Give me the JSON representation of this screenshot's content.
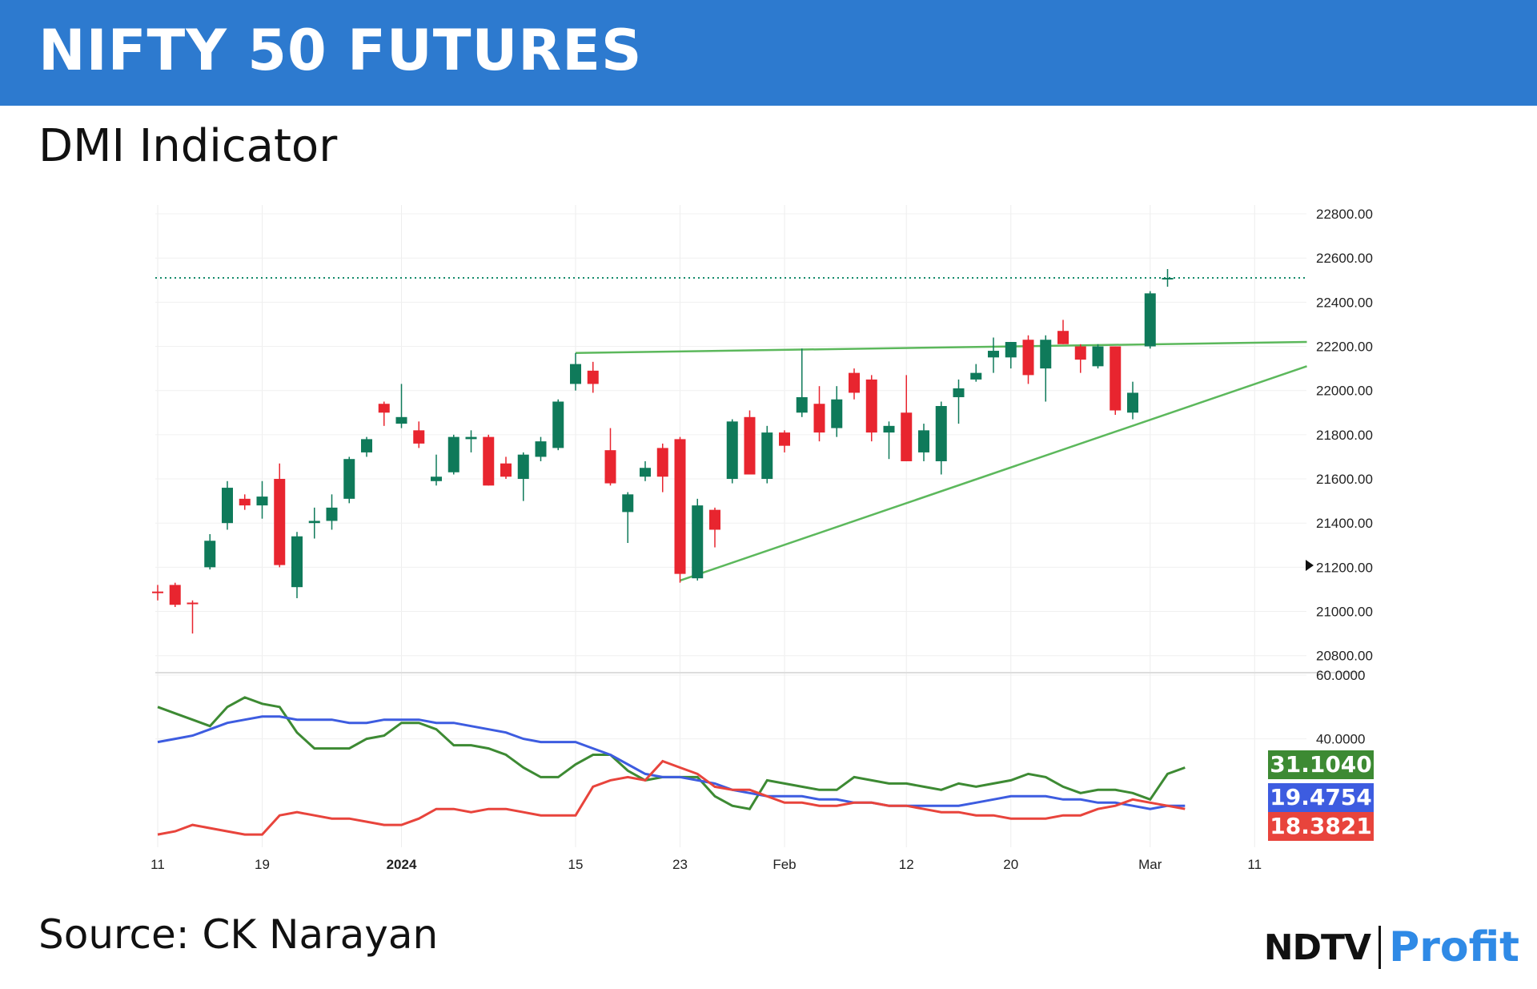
{
  "header": {
    "title": "NIFTY 50 FUTURES"
  },
  "subtitle": "DMI Indicator",
  "source": "Source: CK Narayan",
  "brand": {
    "part1": "NDTV",
    "part2": "Profit"
  },
  "colors": {
    "banner": "#2d7acf",
    "up": "#0f7a5a",
    "down": "#e8252f",
    "trend": "#5cb85c",
    "adx": "#3d5ce0",
    "plus_di": "#3d8a33",
    "minus_di": "#e8443c"
  },
  "chart_data": {
    "type": "candlestick",
    "x_ticks": [
      {
        "label": "11",
        "i": 0
      },
      {
        "label": "19",
        "i": 6
      },
      {
        "label": "2024",
        "i": 14,
        "bold": true
      },
      {
        "label": "15",
        "i": 24
      },
      {
        "label": "23",
        "i": 30
      },
      {
        "label": "Feb",
        "i": 36
      },
      {
        "label": "12",
        "i": 43
      },
      {
        "label": "20",
        "i": 49
      },
      {
        "label": "Mar",
        "i": 57
      },
      {
        "label": "11",
        "i": 63
      }
    ],
    "price_axis": {
      "ticks": [
        "22800.00",
        "22600.00",
        "22400.00",
        "22200.00",
        "22000.00",
        "21800.00",
        "21600.00",
        "21400.00",
        "21200.00",
        "21000.00",
        "20800.00"
      ],
      "range": [
        20730,
        22840
      ]
    },
    "candles": [
      {
        "o": 21090,
        "h": 21120,
        "l": 21050,
        "c": 21085
      },
      {
        "o": 21120,
        "h": 21130,
        "l": 21020,
        "c": 21030
      },
      {
        "o": 21040,
        "h": 21050,
        "l": 20900,
        "c": 21035
      },
      {
        "o": 21200,
        "h": 21350,
        "l": 21190,
        "c": 21320
      },
      {
        "o": 21400,
        "h": 21590,
        "l": 21370,
        "c": 21560
      },
      {
        "o": 21510,
        "h": 21530,
        "l": 21460,
        "c": 21480
      },
      {
        "o": 21480,
        "h": 21590,
        "l": 21420,
        "c": 21520
      },
      {
        "o": 21600,
        "h": 21670,
        "l": 21200,
        "c": 21210
      },
      {
        "o": 21110,
        "h": 21360,
        "l": 21060,
        "c": 21340
      },
      {
        "o": 21400,
        "h": 21470,
        "l": 21330,
        "c": 21410
      },
      {
        "o": 21410,
        "h": 21530,
        "l": 21370,
        "c": 21470
      },
      {
        "o": 21510,
        "h": 21700,
        "l": 21490,
        "c": 21690
      },
      {
        "o": 21720,
        "h": 21790,
        "l": 21700,
        "c": 21780
      },
      {
        "o": 21940,
        "h": 21950,
        "l": 21840,
        "c": 21900
      },
      {
        "o": 21850,
        "h": 22030,
        "l": 21830,
        "c": 21880
      },
      {
        "o": 21820,
        "h": 21860,
        "l": 21740,
        "c": 21760
      },
      {
        "o": 21590,
        "h": 21710,
        "l": 21570,
        "c": 21610
      },
      {
        "o": 21630,
        "h": 21800,
        "l": 21620,
        "c": 21790
      },
      {
        "o": 21780,
        "h": 21820,
        "l": 21720,
        "c": 21790
      },
      {
        "o": 21790,
        "h": 21800,
        "l": 21570,
        "c": 21570
      },
      {
        "o": 21670,
        "h": 21700,
        "l": 21600,
        "c": 21610
      },
      {
        "o": 21600,
        "h": 21720,
        "l": 21500,
        "c": 21710
      },
      {
        "o": 21700,
        "h": 21790,
        "l": 21680,
        "c": 21770
      },
      {
        "o": 21740,
        "h": 21960,
        "l": 21730,
        "c": 21950
      },
      {
        "o": 22030,
        "h": 22170,
        "l": 22000,
        "c": 22120
      },
      {
        "o": 22090,
        "h": 22130,
        "l": 21990,
        "c": 22030
      },
      {
        "o": 21730,
        "h": 21830,
        "l": 21570,
        "c": 21580
      },
      {
        "o": 21450,
        "h": 21540,
        "l": 21310,
        "c": 21530
      },
      {
        "o": 21610,
        "h": 21680,
        "l": 21590,
        "c": 21650
      },
      {
        "o": 21740,
        "h": 21760,
        "l": 21540,
        "c": 21610
      },
      {
        "o": 21780,
        "h": 21790,
        "l": 21130,
        "c": 21170
      },
      {
        "o": 21150,
        "h": 21510,
        "l": 21140,
        "c": 21480
      },
      {
        "o": 21460,
        "h": 21470,
        "l": 21290,
        "c": 21370
      },
      {
        "o": 21600,
        "h": 21870,
        "l": 21580,
        "c": 21860
      },
      {
        "o": 21880,
        "h": 21910,
        "l": 21630,
        "c": 21620
      },
      {
        "o": 21600,
        "h": 21840,
        "l": 21580,
        "c": 21810
      },
      {
        "o": 21810,
        "h": 21820,
        "l": 21720,
        "c": 21750
      },
      {
        "o": 21900,
        "h": 22190,
        "l": 21880,
        "c": 21970
      },
      {
        "o": 21940,
        "h": 22020,
        "l": 21770,
        "c": 21810
      },
      {
        "o": 21830,
        "h": 22020,
        "l": 21790,
        "c": 21960
      },
      {
        "o": 22080,
        "h": 22100,
        "l": 21960,
        "c": 21990
      },
      {
        "o": 22050,
        "h": 22070,
        "l": 21770,
        "c": 21810
      },
      {
        "o": 21810,
        "h": 21860,
        "l": 21690,
        "c": 21840
      },
      {
        "o": 21900,
        "h": 22070,
        "l": 21680,
        "c": 21680
      },
      {
        "o": 21720,
        "h": 21850,
        "l": 21680,
        "c": 21820
      },
      {
        "o": 21680,
        "h": 21950,
        "l": 21620,
        "c": 21930
      },
      {
        "o": 21970,
        "h": 22050,
        "l": 21850,
        "c": 22010
      },
      {
        "o": 22050,
        "h": 22120,
        "l": 22040,
        "c": 22080
      },
      {
        "o": 22150,
        "h": 22240,
        "l": 22080,
        "c": 22180
      },
      {
        "o": 22150,
        "h": 22220,
        "l": 22100,
        "c": 22220
      },
      {
        "o": 22230,
        "h": 22250,
        "l": 22030,
        "c": 22070
      },
      {
        "o": 22100,
        "h": 22250,
        "l": 21950,
        "c": 22230
      },
      {
        "o": 22270,
        "h": 22320,
        "l": 22210,
        "c": 22210
      },
      {
        "o": 22200,
        "h": 22210,
        "l": 22080,
        "c": 22140
      },
      {
        "o": 22110,
        "h": 22210,
        "l": 22100,
        "c": 22200
      },
      {
        "o": 22200,
        "h": 22200,
        "l": 21890,
        "c": 21910
      },
      {
        "o": 21900,
        "h": 22040,
        "l": 21870,
        "c": 21990
      },
      {
        "o": 22200,
        "h": 22450,
        "l": 22190,
        "c": 22440
      },
      {
        "o": 22510,
        "h": 22550,
        "l": 22470,
        "c": 22510
      }
    ],
    "last_price_line": 22510,
    "trendlines": [
      {
        "i1": 24,
        "v1": 22170,
        "i2": 66,
        "v2": 22220
      },
      {
        "i1": 30,
        "v1": 21140,
        "i2": 66,
        "v2": 22110
      }
    ],
    "indicator": {
      "name": "DMI",
      "ticks": [
        "60.0000",
        "40.0000"
      ],
      "range": [
        6,
        60
      ],
      "series": [
        {
          "label": "31.1040",
          "color": "#3d8a33",
          "values": [
            50,
            48,
            46,
            44,
            50,
            53,
            51,
            50,
            42,
            37,
            37,
            37,
            40,
            41,
            45,
            45,
            43,
            38,
            38,
            37,
            35,
            31,
            28,
            28,
            32,
            35,
            35,
            30,
            27,
            28,
            28,
            28,
            22,
            19,
            18,
            27,
            26,
            25,
            24,
            24,
            28,
            27,
            26,
            26,
            25,
            24,
            26,
            25,
            26,
            27,
            29,
            28,
            25,
            23,
            24,
            24,
            23,
            21,
            29,
            31
          ]
        },
        {
          "label": "19.4754",
          "color": "#3d5ce0",
          "values": [
            39,
            40,
            41,
            43,
            45,
            46,
            47,
            47,
            46,
            46,
            46,
            45,
            45,
            46,
            46,
            46,
            45,
            45,
            44,
            43,
            42,
            40,
            39,
            39,
            39,
            37,
            35,
            32,
            29,
            28,
            28,
            27,
            26,
            24,
            23,
            22,
            22,
            22,
            21,
            21,
            20,
            20,
            19,
            19,
            19,
            19,
            19,
            20,
            21,
            22,
            22,
            22,
            21,
            21,
            20,
            20,
            19,
            18,
            19,
            19
          ]
        },
        {
          "label": "18.3821",
          "color": "#e8443c",
          "values": [
            10,
            11,
            13,
            12,
            11,
            10,
            10,
            16,
            17,
            16,
            15,
            15,
            14,
            13,
            13,
            15,
            18,
            18,
            17,
            18,
            18,
            17,
            16,
            16,
            16,
            25,
            27,
            28,
            27,
            33,
            31,
            29,
            25,
            24,
            24,
            22,
            20,
            20,
            19,
            19,
            20,
            20,
            19,
            19,
            18,
            17,
            17,
            16,
            16,
            15,
            15,
            15,
            16,
            16,
            18,
            19,
            21,
            20,
            19,
            18
          ]
        }
      ]
    }
  }
}
